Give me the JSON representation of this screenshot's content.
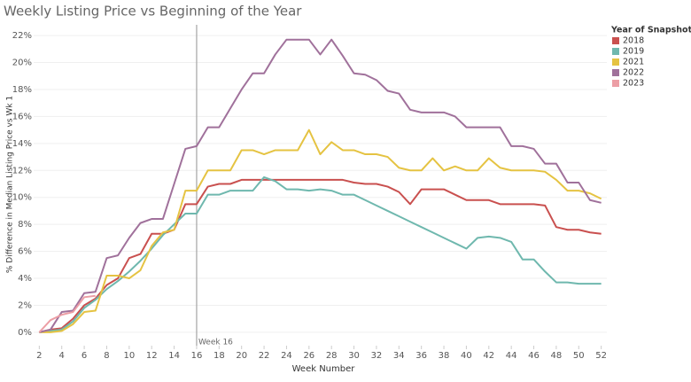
{
  "chart_data": {
    "type": "line",
    "title": "Weekly Listing Price vs Beginning of the Year",
    "x_label": "Week Number",
    "y_label": "% Difference in Median Listing Price vs Wk 1",
    "legend_title": "Year of Snapshot Date",
    "x": [
      2,
      3,
      4,
      5,
      6,
      7,
      8,
      9,
      10,
      11,
      12,
      13,
      14,
      15,
      16,
      17,
      18,
      19,
      20,
      21,
      22,
      23,
      24,
      25,
      26,
      27,
      28,
      29,
      30,
      31,
      32,
      33,
      34,
      35,
      36,
      37,
      38,
      39,
      40,
      41,
      42,
      43,
      44,
      45,
      46,
      47,
      48,
      49,
      50,
      51,
      52
    ],
    "xlim": [
      1.5,
      52.5
    ],
    "xticks": [
      2,
      4,
      6,
      8,
      10,
      12,
      14,
      16,
      18,
      20,
      22,
      24,
      26,
      28,
      30,
      32,
      34,
      36,
      38,
      40,
      42,
      44,
      46,
      48,
      50,
      52
    ],
    "ylim": [
      -0.6,
      22.6
    ],
    "yticks": [
      {
        "value": 0,
        "label": "0%"
      },
      {
        "value": 2,
        "label": "2%"
      },
      {
        "value": 4,
        "label": "4%"
      },
      {
        "value": 6,
        "label": "6%"
      },
      {
        "value": 8,
        "label": "8%"
      },
      {
        "value": 10,
        "label": "10%"
      },
      {
        "value": 12,
        "label": "12%"
      },
      {
        "value": 14,
        "label": "14%"
      },
      {
        "value": 16,
        "label": "16%"
      },
      {
        "value": 18,
        "label": "18%"
      },
      {
        "value": 20,
        "label": "20%"
      },
      {
        "value": 22,
        "label": "22%"
      }
    ],
    "grid": true,
    "reference_line": {
      "value": 16,
      "label": "Week 16"
    },
    "series": [
      {
        "name": "2018",
        "color": "#c9504f",
        "values": [
          0,
          0.2,
          0.3,
          1.0,
          2.0,
          2.5,
          3.5,
          4.0,
          5.5,
          5.8,
          7.3,
          7.3,
          7.6,
          9.5,
          9.5,
          10.8,
          11.0,
          11.0,
          11.3,
          11.3,
          11.3,
          11.3,
          11.3,
          11.3,
          11.3,
          11.3,
          11.3,
          11.3,
          11.1,
          11.0,
          11.0,
          10.8,
          10.4,
          9.5,
          10.6,
          10.6,
          10.6,
          10.2,
          9.8,
          9.8,
          9.8,
          9.5,
          9.5,
          9.5,
          9.5,
          9.4,
          7.8,
          7.6,
          7.6,
          7.4,
          7.3
        ]
      },
      {
        "name": "2019",
        "color": "#6fb8ae",
        "values": [
          0,
          0.1,
          0.2,
          0.8,
          1.8,
          2.4,
          3.2,
          3.8,
          4.5,
          5.3,
          6.2,
          7.2,
          8.0,
          8.8,
          8.8,
          10.2,
          10.2,
          10.5,
          10.5,
          10.5,
          11.5,
          11.2,
          10.6,
          10.6,
          10.5,
          10.6,
          10.5,
          10.2,
          10.2,
          9.8,
          9.4,
          9.0,
          8.6,
          8.2,
          7.8,
          7.4,
          7.0,
          6.6,
          6.2,
          7.0,
          7.1,
          7.0,
          6.7,
          5.4,
          5.4,
          4.5,
          3.7,
          3.7,
          3.6,
          3.6,
          3.6
        ]
      },
      {
        "name": "2021",
        "color": "#e5c342",
        "values": [
          0,
          0,
          0.1,
          0.6,
          1.5,
          1.6,
          4.2,
          4.2,
          4.0,
          4.6,
          6.4,
          7.4,
          7.6,
          10.5,
          10.5,
          12.0,
          12.0,
          12.0,
          13.5,
          13.5,
          13.2,
          13.5,
          13.5,
          13.5,
          15.0,
          13.2,
          14.1,
          13.5,
          13.5,
          13.2,
          13.2,
          13.0,
          12.2,
          12.0,
          12.0,
          12.9,
          12.0,
          12.3,
          12.0,
          12.0,
          12.9,
          12.2,
          12.0,
          12.0,
          12.0,
          11.9,
          11.3,
          10.5,
          10.5,
          10.3,
          9.9
        ]
      },
      {
        "name": "2022",
        "color": "#a0719b",
        "values": [
          0,
          0.2,
          1.5,
          1.6,
          2.9,
          3.0,
          5.5,
          5.7,
          7.0,
          8.1,
          8.4,
          8.4,
          11.0,
          13.6,
          13.8,
          15.2,
          15.2,
          16.6,
          18.0,
          19.2,
          19.2,
          20.6,
          21.7,
          21.7,
          21.7,
          20.6,
          21.7,
          20.5,
          19.2,
          19.1,
          18.7,
          17.9,
          17.7,
          16.5,
          16.3,
          16.3,
          16.3,
          16.0,
          15.2,
          15.2,
          15.2,
          15.2,
          13.8,
          13.8,
          13.6,
          12.5,
          12.5,
          11.1,
          11.1,
          9.8,
          9.6
        ]
      },
      {
        "name": "2023",
        "color": "#ec9ea5",
        "values": [
          0,
          0.9,
          1.3,
          1.5,
          2.6,
          2.7,
          null,
          null,
          null,
          null,
          null,
          null,
          null,
          null,
          null,
          null,
          null,
          null,
          null,
          null,
          null,
          null,
          null,
          null,
          null,
          null,
          null,
          null,
          null,
          null,
          null,
          null,
          null,
          null,
          null,
          null,
          null,
          null,
          null,
          null,
          null,
          null,
          null,
          null,
          null,
          null,
          null,
          null,
          null,
          null,
          null
        ]
      }
    ]
  }
}
